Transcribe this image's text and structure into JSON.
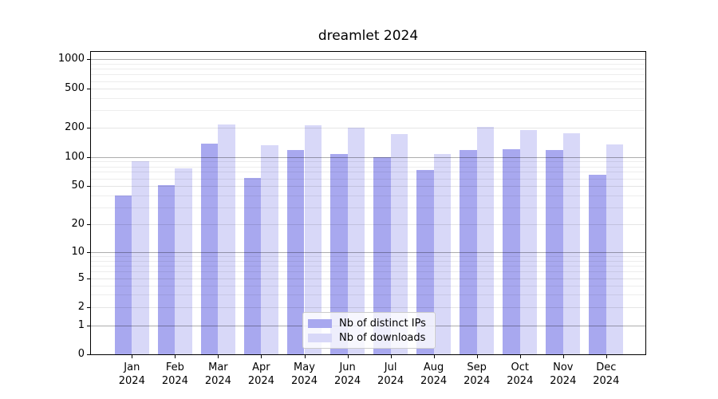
{
  "chart_data": {
    "type": "bar",
    "title": "dreamlet 2024",
    "categories": [
      "Jan 2024",
      "Feb 2024",
      "Mar 2024",
      "Apr 2024",
      "May 2024",
      "Jun 2024",
      "Jul 2024",
      "Aug 2024",
      "Sep 2024",
      "Oct 2024",
      "Nov 2024",
      "Dec 2024"
    ],
    "series": [
      {
        "name": "Nb of distinct IPs",
        "color": "#a8a8ef",
        "values": [
          40,
          51,
          136,
          61,
          118,
          108,
          100,
          74,
          119,
          120,
          117,
          66
        ]
      },
      {
        "name": "Nb of downloads",
        "color": "#d8d8f8",
        "values": [
          90,
          76,
          216,
          132,
          210,
          200,
          170,
          108,
          201,
          188,
          176,
          134
        ]
      }
    ],
    "y_ticks": [
      0,
      1,
      2,
      5,
      10,
      20,
      50,
      100,
      200,
      500,
      1000
    ],
    "y_scale": "symlog",
    "ylim": [
      0,
      1200
    ],
    "xlabel": "",
    "ylabel": "",
    "grid": true,
    "grid_over_bars": true,
    "legend_position": "lower center"
  }
}
